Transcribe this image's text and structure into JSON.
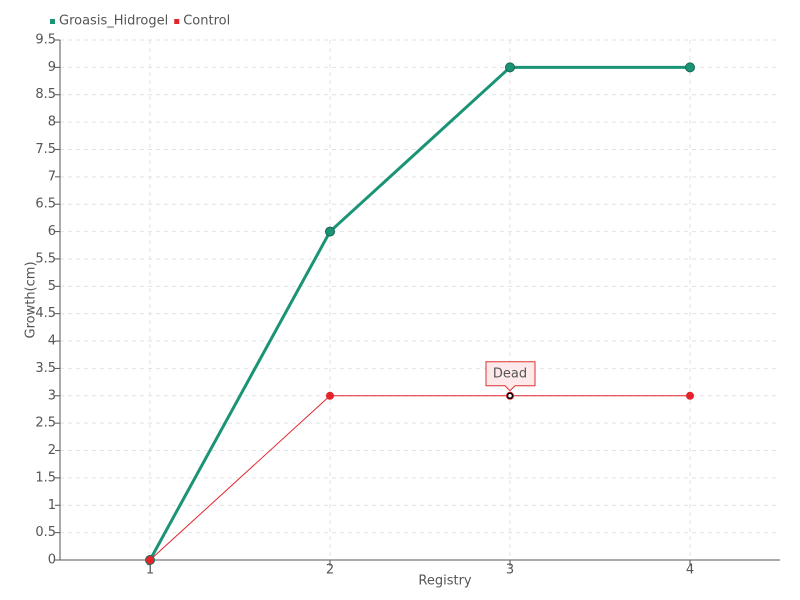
{
  "chart_data": {
    "type": "line",
    "x": [
      1,
      2,
      3,
      4
    ],
    "series": [
      {
        "name": "Groasis_Hidrogel",
        "color": "#1b9476",
        "values": [
          0,
          6,
          9,
          9
        ]
      },
      {
        "name": "Control",
        "color": "#e3242b",
        "values": [
          0,
          3,
          3,
          3
        ]
      }
    ],
    "xlim": [
      0.5,
      4.5
    ],
    "xticks": [
      1,
      2,
      3,
      4
    ],
    "ylim": [
      0,
      9.5
    ],
    "yticks": [
      0,
      0.5,
      1,
      1.5,
      2,
      2.5,
      3,
      3.5,
      4,
      4.5,
      5,
      5.5,
      6,
      6.5,
      7,
      7.5,
      8,
      8.5,
      9,
      9.5
    ],
    "x_label": "Registry",
    "y_label": "Growth(cm)",
    "grid": true,
    "legend": "top-left",
    "annotations": [
      {
        "text": "Dead",
        "x": 3,
        "y": 3
      }
    ]
  }
}
